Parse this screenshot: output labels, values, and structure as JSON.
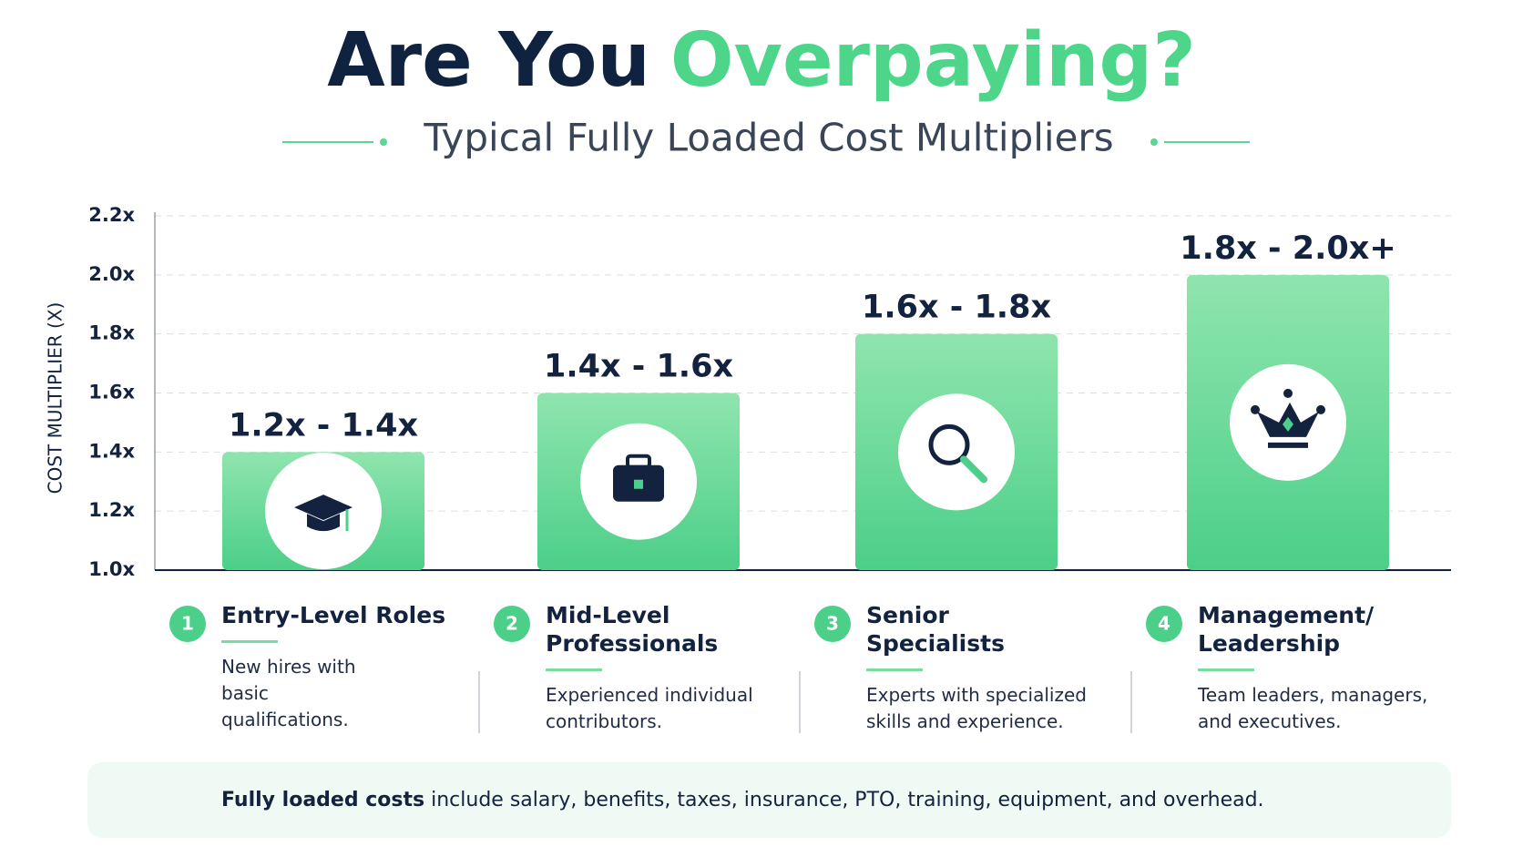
{
  "chart_data": {
    "type": "bar",
    "title": [
      "Are You",
      "Overpaying?"
    ],
    "subtitle": "Typical Fully Loaded Cost Multipliers",
    "y_label": "COST MULTIPLIER (X)",
    "categories": [
      "Entry-Level Roles",
      "Mid-Level Professionals",
      "Senior Specialists",
      "Management/Leadership"
    ],
    "category_numbers": [
      "1",
      "2",
      "3",
      "4"
    ],
    "descriptions": [
      [
        "New hires with",
        "basic qualifications."
      ],
      [
        "Experienced individual",
        "contributors."
      ],
      [
        "Experts with specialized",
        "skills and experience."
      ],
      [
        "Team leaders, managers,",
        "and executives."
      ]
    ],
    "values": [
      1.4,
      1.6,
      1.8,
      2.0
    ],
    "value_labels": [
      "1.2x - 1.4x",
      "1.4x - 1.6x",
      "1.6x - 1.8x",
      "1.8x - 2.0x+"
    ],
    "color": [
      "#8fe5ad",
      "#4ccf88"
    ],
    "ylim": [
      1.0,
      2.2
    ],
    "yticks": [
      {
        "value": 1.0,
        "label": "1.0x"
      },
      {
        "value": 1.2,
        "label": "1.2x"
      },
      {
        "value": 1.4,
        "label": "1.4x"
      },
      {
        "value": 1.6,
        "label": "1.6x"
      },
      {
        "value": 1.8,
        "label": "1.8x"
      },
      {
        "value": 2.0,
        "label": "2.0x"
      },
      {
        "value": 2.2,
        "label": "2.2x"
      }
    ],
    "grid": true,
    "footnote": {
      "bold": "Fully loaded costs",
      "text": "include salary, benefits, taxes, insurance, PTO, training, equipment, and overhead."
    }
  }
}
